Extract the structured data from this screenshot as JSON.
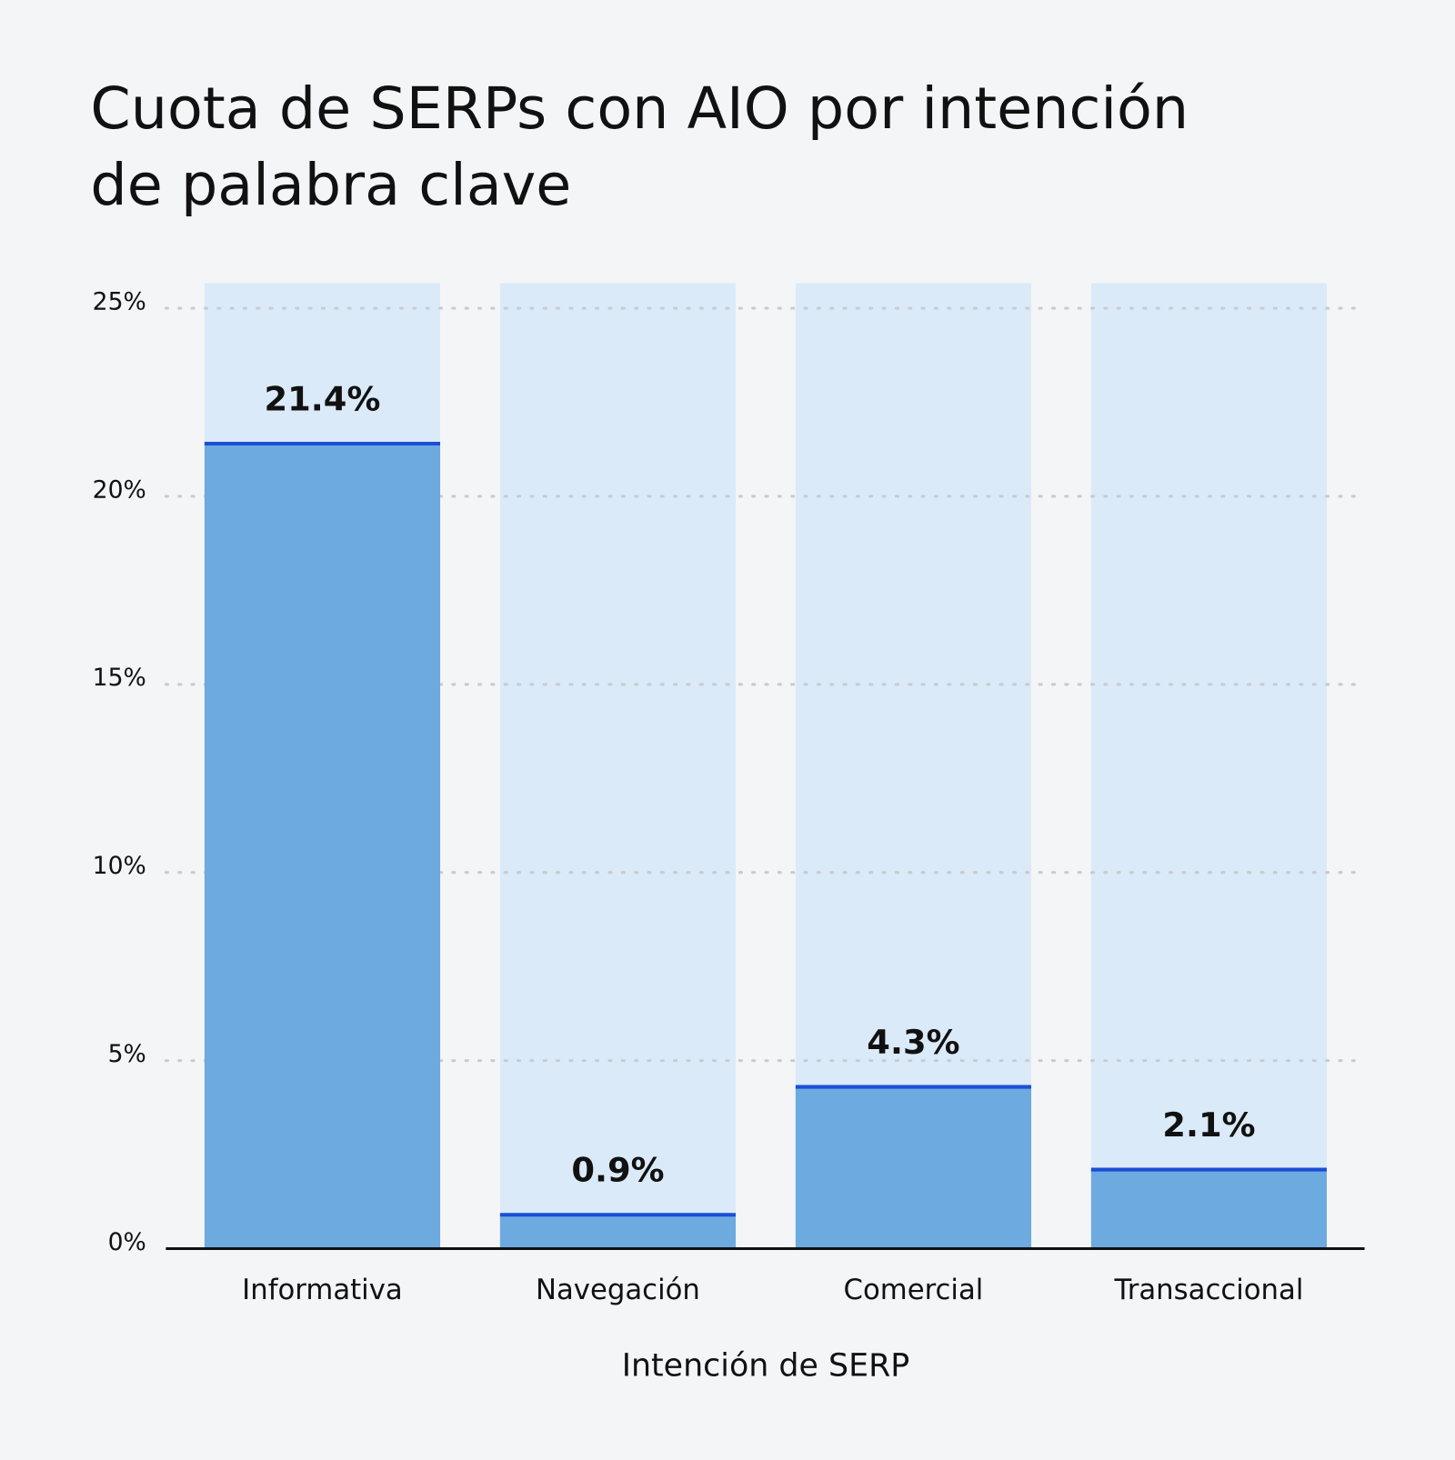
{
  "chart_data": {
    "type": "bar",
    "title": "Cuota de SERPs con AIO por intención de palabra clave",
    "x_label": "Intención de SERP",
    "categories": [
      "Informativa",
      "Navegación",
      "Comercial",
      "Transaccional"
    ],
    "values": [
      21.4,
      0.9,
      4.3,
      2.1
    ],
    "value_labels": [
      "21.4%",
      "0.9%",
      "4.3%",
      "2.1%"
    ],
    "color": "#6daae0",
    "ylim": [
      0,
      25
    ],
    "yticks": [
      {
        "value": 0,
        "label": "0%"
      },
      {
        "value": 5,
        "label": "5%"
      },
      {
        "value": 10,
        "label": "10%"
      },
      {
        "value": 15,
        "label": "15%"
      },
      {
        "value": 20,
        "label": "20%"
      },
      {
        "value": 25,
        "label": "25%"
      }
    ],
    "grid": true
  }
}
